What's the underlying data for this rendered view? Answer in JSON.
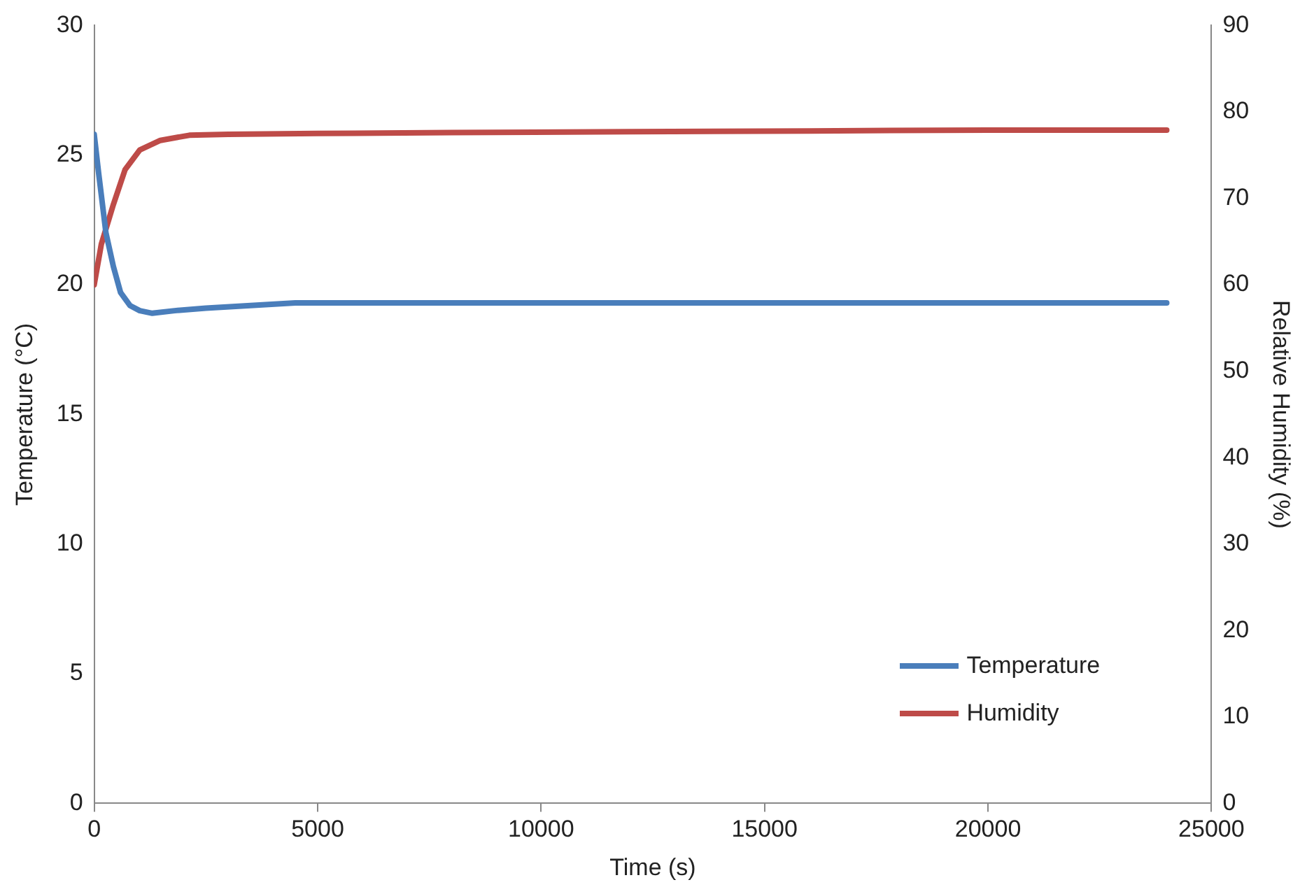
{
  "chart_data": {
    "type": "line",
    "xlabel": "Time (s)",
    "ylabel": "Temperature (°C)",
    "y2label": "Relative Humidity (%)",
    "xlim": [
      0,
      25000
    ],
    "xticks": [
      0,
      5000,
      10000,
      15000,
      20000,
      25000
    ],
    "ylim": [
      0,
      30
    ],
    "yticks": [
      0,
      5,
      10,
      15,
      20,
      25,
      30
    ],
    "y2lim": [
      0,
      90
    ],
    "y2ticks": [
      0,
      10,
      20,
      30,
      40,
      50,
      60,
      70,
      80,
      90
    ],
    "grid": false,
    "legend": "bottom right",
    "marker": "none",
    "line_style": "solid",
    "series": [
      {
        "name": "Temperature",
        "color": "#4a7ebb",
        "x": [
          0,
          100,
          263,
          430,
          590,
          800,
          1020,
          1300,
          1800,
          2500,
          3500,
          4500,
          8000,
          12000,
          16000,
          20000,
          24000
        ],
        "values": [
          25.8,
          24.3,
          22.0,
          20.7,
          19.7,
          19.2,
          19.0,
          18.9,
          19.0,
          19.1,
          19.2,
          19.3,
          19.3,
          19.3,
          19.3,
          19.3,
          19.3
        ]
      },
      {
        "name": "Humidity",
        "color": "#be4b48",
        "axis": "y2",
        "x": [
          0,
          160,
          430,
          690,
          1020,
          1480,
          2130,
          3000,
          5000,
          8000,
          12000,
          16000,
          20000,
          24000
        ],
        "values": [
          60.0,
          64.7,
          69.3,
          73.3,
          75.6,
          76.7,
          77.3,
          77.4,
          77.5,
          77.6,
          77.7,
          77.8,
          77.9,
          77.9
        ]
      }
    ]
  }
}
